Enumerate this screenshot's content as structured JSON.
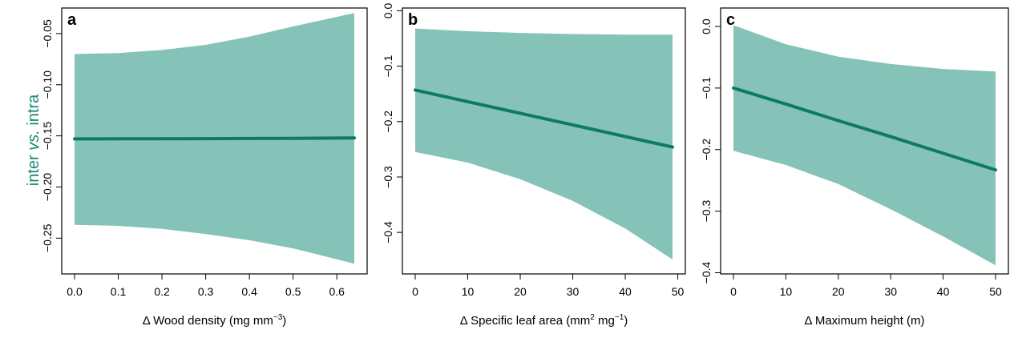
{
  "figure": {
    "ylabel_parts": [
      "inter ",
      "vs.",
      " intra"
    ],
    "ylabel_color": "#198a73",
    "band_color": "#85c2b8",
    "line_color": "#0d7b62",
    "frame_color": "#000000"
  },
  "chart_data": [
    {
      "type": "area",
      "panel": "a",
      "xlabel_parts": [
        "Δ Wood density (mg mm",
        "−3",
        ")"
      ],
      "xlim": [
        0.0,
        0.64
      ],
      "ylim": [
        -0.285,
        -0.025
      ],
      "xticks": [
        0.0,
        0.1,
        0.2,
        0.3,
        0.4,
        0.5,
        0.6
      ],
      "xtick_labels": [
        "0.0",
        "0.1",
        "0.2",
        "0.3",
        "0.4",
        "0.5",
        "0.6"
      ],
      "yticks": [
        -0.25,
        -0.2,
        -0.15,
        -0.1,
        -0.05
      ],
      "ytick_labels": [
        "−0.25",
        "−0.20",
        "−0.15",
        "−0.10",
        "−0.05"
      ],
      "grid": false,
      "x": [
        0.0,
        0.1,
        0.2,
        0.3,
        0.4,
        0.5,
        0.64
      ],
      "fit": [
        -0.153,
        -0.1529,
        -0.1528,
        -0.1527,
        -0.1526,
        -0.1525,
        -0.152
      ],
      "upper": [
        -0.07,
        -0.069,
        -0.066,
        -0.061,
        -0.053,
        -0.043,
        -0.03
      ],
      "lower": [
        -0.237,
        -0.238,
        -0.241,
        -0.246,
        -0.252,
        -0.26,
        -0.275
      ]
    },
    {
      "type": "area",
      "panel": "b",
      "xlabel_parts": [
        "Δ Specific leaf area (mm",
        "2",
        " mg",
        "−1",
        ")"
      ],
      "xlim": [
        0,
        49
      ],
      "ylim": [
        -0.475,
        0.005
      ],
      "xticks": [
        0,
        10,
        20,
        30,
        40,
        50
      ],
      "xtick_labels": [
        "0",
        "10",
        "20",
        "30",
        "40",
        "50"
      ],
      "yticks": [
        -0.4,
        -0.3,
        -0.2,
        -0.1,
        0.0
      ],
      "ytick_labels": [
        "−0.4",
        "−0.3",
        "−0.2",
        "−0.1",
        "0.0"
      ],
      "grid": false,
      "x": [
        0,
        10,
        20,
        30,
        40,
        49
      ],
      "fit": [
        -0.143,
        -0.164,
        -0.185,
        -0.206,
        -0.227,
        -0.246
      ],
      "upper": [
        -0.032,
        -0.037,
        -0.04,
        -0.042,
        -0.043,
        -0.043
      ],
      "lower": [
        -0.255,
        -0.274,
        -0.304,
        -0.343,
        -0.393,
        -0.449
      ]
    },
    {
      "type": "area",
      "panel": "c",
      "xlabel_parts": [
        "Δ Maximum height (m)"
      ],
      "xlim": [
        0,
        50
      ],
      "ylim": [
        -0.402,
        0.03
      ],
      "xticks": [
        0,
        10,
        20,
        30,
        40,
        50
      ],
      "xtick_labels": [
        "0",
        "10",
        "20",
        "30",
        "40",
        "50"
      ],
      "yticks": [
        -0.4,
        -0.3,
        -0.2,
        -0.1,
        0.0
      ],
      "ytick_labels": [
        "−0.4",
        "−0.3",
        "−0.2",
        "−0.1",
        "0.0"
      ],
      "grid": false,
      "x": [
        0,
        10,
        20,
        30,
        40,
        50
      ],
      "fit": [
        -0.1,
        -0.126,
        -0.153,
        -0.179,
        -0.206,
        -0.233
      ],
      "upper": [
        0.002,
        -0.029,
        -0.049,
        -0.061,
        -0.069,
        -0.073
      ],
      "lower": [
        -0.202,
        -0.225,
        -0.256,
        -0.297,
        -0.341,
        -0.388
      ]
    }
  ]
}
